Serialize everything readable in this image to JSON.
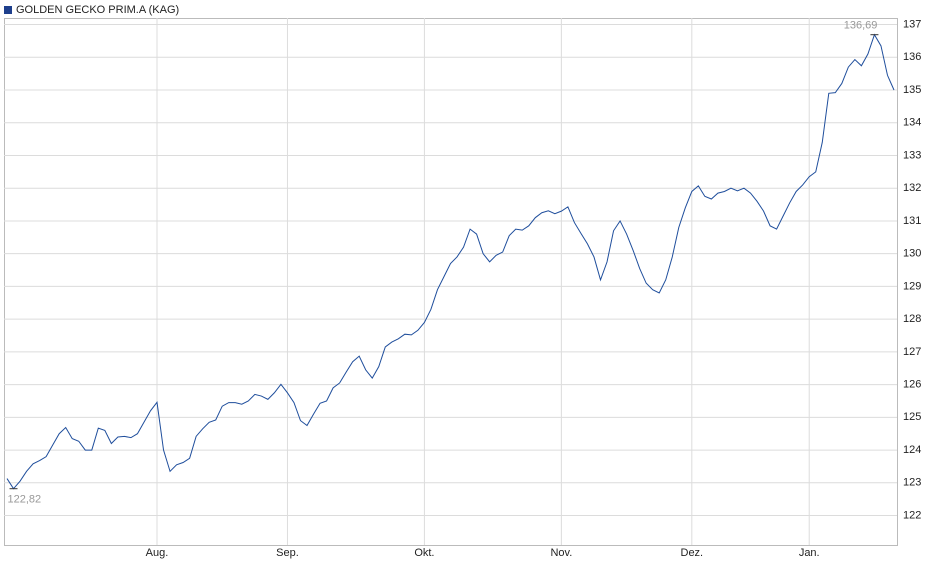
{
  "chart_data": {
    "type": "line",
    "legend": "GOLDEN GECKO PRIM.A (KAG)",
    "categories": [
      null,
      null,
      null,
      null,
      null,
      null,
      null,
      null,
      null,
      null,
      null,
      null,
      null,
      null,
      null,
      null,
      null,
      null,
      null,
      null,
      null,
      null,
      null,
      "Aug.",
      null,
      null,
      null,
      null,
      null,
      null,
      null,
      null,
      null,
      null,
      null,
      null,
      null,
      null,
      null,
      null,
      null,
      null,
      null,
      "Sep.",
      null,
      null,
      null,
      null,
      null,
      null,
      null,
      null,
      null,
      null,
      null,
      null,
      null,
      null,
      null,
      null,
      null,
      null,
      null,
      null,
      "Okt.",
      null,
      null,
      null,
      null,
      null,
      null,
      null,
      null,
      null,
      null,
      null,
      null,
      null,
      null,
      null,
      null,
      null,
      null,
      null,
      null,
      "Nov.",
      null,
      null,
      null,
      null,
      null,
      null,
      null,
      null,
      null,
      null,
      null,
      null,
      null,
      null,
      null,
      null,
      null,
      null,
      null,
      "Dez.",
      null,
      null,
      null,
      null,
      null,
      null,
      null,
      null,
      null,
      null,
      null,
      null,
      null,
      null,
      null,
      null,
      null,
      "Jan.",
      null,
      null,
      null,
      null,
      null,
      null,
      null,
      null,
      null,
      null,
      null,
      null,
      null
    ],
    "series": [
      {
        "name": "GOLDEN GECKO PRIM.A (KAG)",
        "color": "#1f4e9c",
        "values": [
          123.13,
          122.82,
          123.05,
          123.35,
          123.58,
          123.68,
          123.8,
          124.15,
          124.5,
          124.69,
          124.35,
          124.27,
          124.0,
          124.0,
          124.67,
          124.6,
          124.2,
          124.4,
          124.42,
          124.38,
          124.5,
          124.85,
          125.2,
          125.46,
          124.0,
          123.35,
          123.55,
          123.62,
          123.75,
          124.42,
          124.65,
          124.85,
          124.92,
          125.34,
          125.45,
          125.45,
          125.4,
          125.5,
          125.7,
          125.65,
          125.55,
          125.75,
          126.01,
          125.75,
          125.45,
          124.9,
          124.75,
          125.1,
          125.43,
          125.5,
          125.9,
          126.05,
          126.38,
          126.7,
          126.87,
          126.45,
          126.2,
          126.55,
          127.15,
          127.3,
          127.4,
          127.54,
          127.52,
          127.66,
          127.9,
          128.3,
          128.9,
          129.3,
          129.7,
          129.9,
          130.2,
          130.75,
          130.6,
          130.0,
          129.75,
          129.95,
          130.05,
          130.55,
          130.75,
          130.72,
          130.85,
          131.1,
          131.25,
          131.31,
          131.22,
          131.3,
          131.43,
          130.95,
          130.62,
          130.3,
          129.9,
          129.2,
          129.75,
          130.7,
          131.0,
          130.6,
          130.1,
          129.55,
          129.1,
          128.9,
          128.8,
          129.2,
          129.9,
          130.8,
          131.4,
          131.9,
          132.07,
          131.75,
          131.67,
          131.85,
          131.9,
          132.0,
          131.92,
          132.0,
          131.85,
          131.6,
          131.3,
          130.85,
          130.75,
          131.15,
          131.55,
          131.9,
          132.1,
          132.35,
          132.5,
          133.4,
          134.9,
          134.92,
          135.2,
          135.7,
          135.93,
          135.74,
          136.1,
          136.69,
          136.35,
          135.45,
          135.0
        ],
        "value_labels": [
          null,
          "122,82",
          null,
          null,
          null,
          null,
          null,
          null,
          null,
          null,
          null,
          null,
          null,
          null,
          null,
          null,
          null,
          null,
          null,
          null,
          null,
          null,
          null,
          null,
          null,
          null,
          null,
          null,
          null,
          null,
          null,
          null,
          null,
          null,
          null,
          null,
          null,
          null,
          null,
          null,
          null,
          null,
          null,
          null,
          null,
          null,
          null,
          null,
          null,
          null,
          null,
          null,
          null,
          null,
          null,
          null,
          null,
          null,
          null,
          null,
          null,
          null,
          null,
          null,
          null,
          null,
          null,
          null,
          null,
          null,
          null,
          null,
          null,
          null,
          null,
          null,
          null,
          null,
          null,
          null,
          null,
          null,
          null,
          null,
          null,
          null,
          null,
          null,
          null,
          null,
          null,
          null,
          null,
          null,
          null,
          null,
          null,
          null,
          null,
          null,
          null,
          null,
          null,
          null,
          null,
          null,
          null,
          null,
          null,
          null,
          null,
          null,
          null,
          null,
          null,
          null,
          null,
          null,
          null,
          null,
          null,
          null,
          null,
          null,
          null,
          null,
          null,
          null,
          null,
          null,
          null,
          null,
          null,
          "136,69",
          null,
          null,
          null
        ]
      }
    ],
    "ylim": [
      121.1,
      137.2
    ],
    "yticks": [
      122,
      123,
      124,
      125,
      126,
      127,
      128,
      129,
      130,
      131,
      132,
      133,
      134,
      135,
      136,
      137
    ],
    "grid": true
  }
}
